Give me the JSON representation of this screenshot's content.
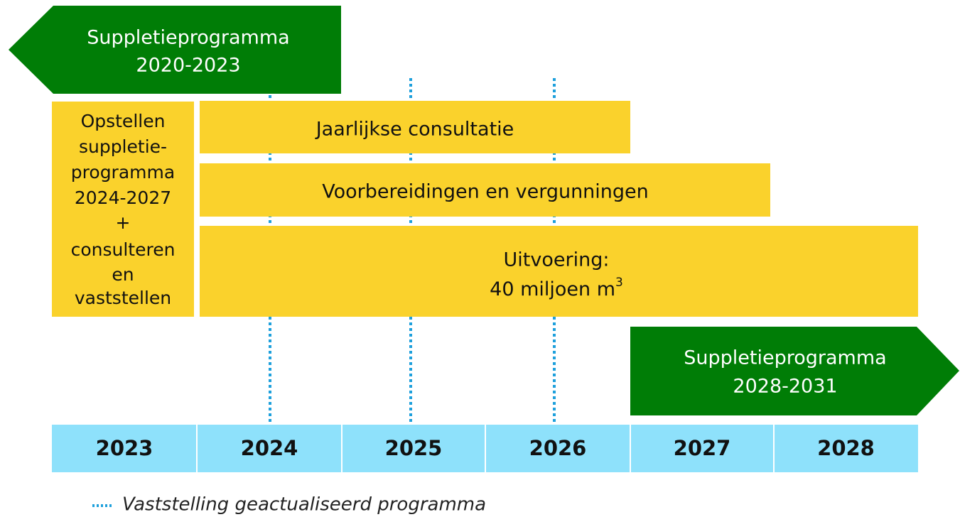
{
  "previous_program": {
    "lines": [
      "Suppletieprogramma",
      "2020-2023"
    ]
  },
  "preparation": {
    "lines": [
      "Opstellen",
      "suppletie-",
      "programma",
      "2024-2027",
      "+",
      "consulteren",
      "en",
      "vaststellen"
    ]
  },
  "bars": {
    "consultation": "Jaarlijkse consultatie",
    "preparations": "Voorbereidingen en vergunningen",
    "execution": {
      "line1": "Uitvoering:",
      "line2": "40 miljoen m",
      "superscript": "3"
    }
  },
  "next_program": {
    "lines": [
      "Suppletieprogramma",
      "2028-2031"
    ]
  },
  "years": [
    "2023",
    "2024",
    "2025",
    "2026",
    "2027",
    "2028"
  ],
  "legend": "Vaststelling geactualiseerd programma"
}
